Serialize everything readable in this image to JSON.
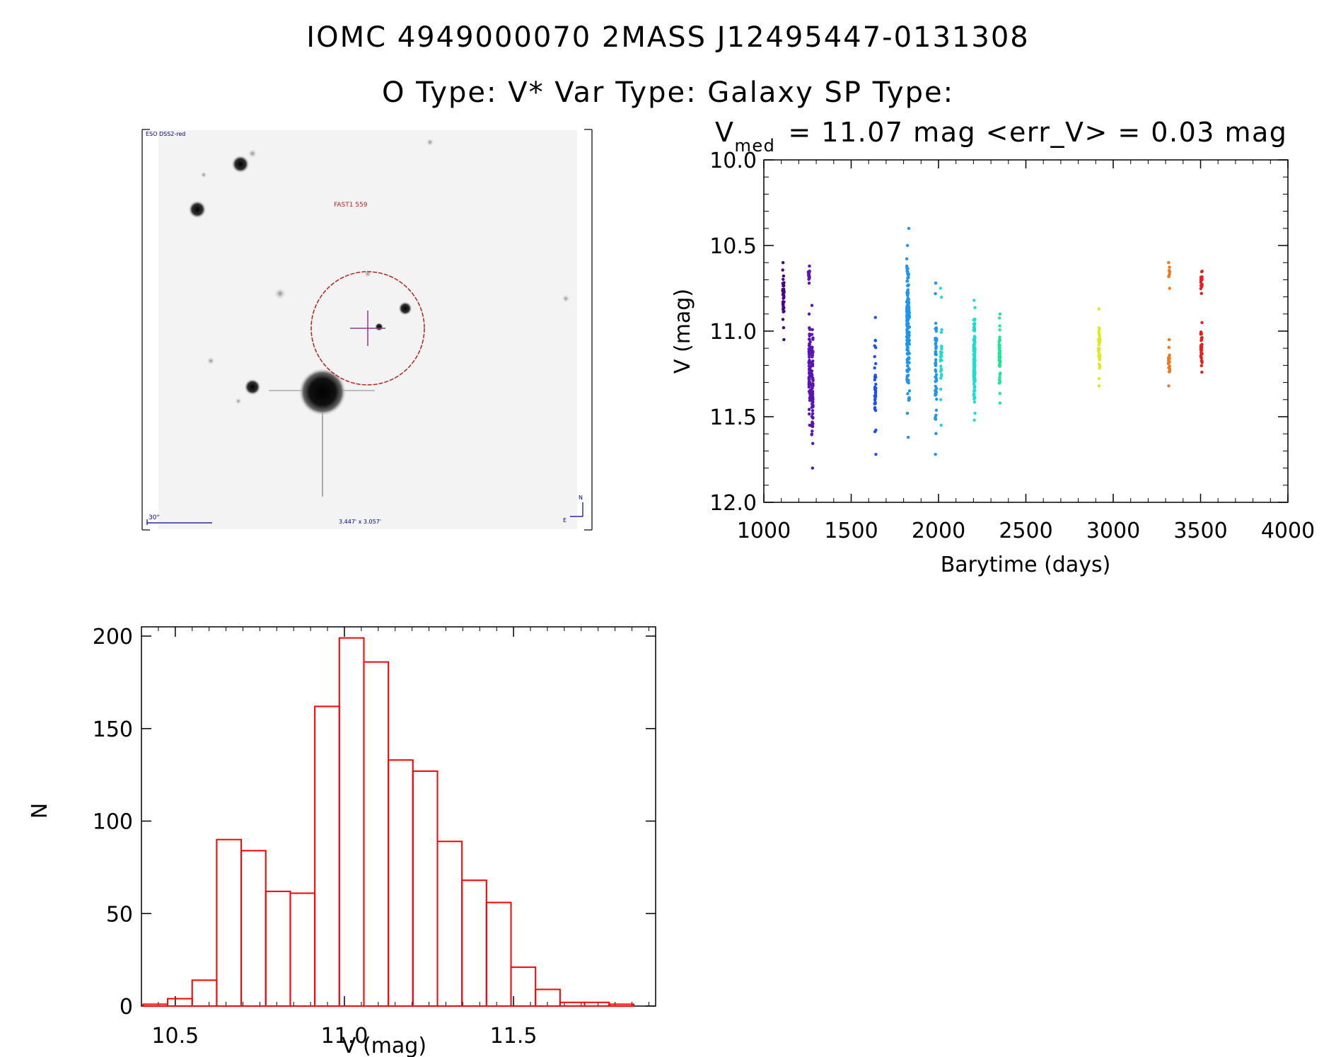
{
  "header": {
    "title_line1": "IOMC 4949000070    2MASS J12495447-0131308",
    "title_line2": "O Type: V*  Var Type: Galaxy  SP Type:"
  },
  "finder": {
    "survey_label": "ESO DSS2-red",
    "object_label": "FAST1 559",
    "scale_label": "30\"",
    "fov_label": "3.447' x 3.057'",
    "north_label": "N",
    "east_label": "E"
  },
  "lightcurve": {
    "vmed_prefix": "V",
    "vmed_subscript": "med",
    "vmed_text": "= 11.07 mag <err_V> = 0.03 mag",
    "colors": [
      "#4b0082",
      "#5a14b4",
      "#3c1ee6",
      "#1e50f0",
      "#1e96f0",
      "#1edcd2",
      "#1ee696",
      "#28e650",
      "#50dc1e",
      "#dceb1e",
      "#f0a01e",
      "#f0781e",
      "#e61e1e"
    ]
  },
  "chart_data": [
    {
      "type": "scatter",
      "xlabel": "Barytime (days)",
      "ylabel": "V (mag)",
      "xlim": [
        1000,
        4000
      ],
      "ylim": [
        12.0,
        10.0
      ],
      "y_inverted": true,
      "xticks": [
        1000,
        1500,
        2000,
        2500,
        3000,
        3500,
        4000
      ],
      "yticks": [
        10.0,
        10.5,
        11.0,
        11.5,
        12.0
      ],
      "xtick_labels": [
        "1000",
        "1500",
        "2000",
        "2500",
        "3000",
        "3500",
        "4000"
      ],
      "ytick_labels": [
        "10.0",
        "10.5",
        "11.0",
        "11.5",
        "12.0"
      ],
      "groups": [
        {
          "x": 1112,
          "y_range": [
            10.6,
            11.05
          ],
          "n": 40
        },
        {
          "x": 1258,
          "y_range": [
            10.62,
            10.72
          ],
          "n": 15
        },
        {
          "x": 1262,
          "y_range": [
            10.9,
            11.55
          ],
          "n": 80
        },
        {
          "x": 1278,
          "y_range": [
            10.85,
            11.8
          ],
          "n": 80
        },
        {
          "x": 1638,
          "y_range": [
            10.92,
            11.72
          ],
          "n": 35
        },
        {
          "x": 1822,
          "y_range": [
            10.5,
            11.48
          ],
          "n": 120
        },
        {
          "x": 1830,
          "y_range": [
            10.4,
            11.62
          ],
          "n": 60
        },
        {
          "x": 1985,
          "y_range": [
            10.72,
            11.72
          ],
          "n": 60
        },
        {
          "x": 2015,
          "y_range": [
            10.75,
            11.55
          ],
          "n": 30
        },
        {
          "x": 2205,
          "y_range": [
            10.82,
            11.52
          ],
          "n": 150
        },
        {
          "x": 2350,
          "y_range": [
            10.9,
            11.42
          ],
          "n": 50
        },
        {
          "x": 2920,
          "y_range": [
            10.87,
            11.32
          ],
          "n": 40
        },
        {
          "x": 3320,
          "y_range": [
            10.6,
            10.75
          ],
          "n": 10
        },
        {
          "x": 3320,
          "y_range": [
            11.05,
            11.32
          ],
          "n": 25
        },
        {
          "x": 3505,
          "y_range": [
            10.65,
            10.78
          ],
          "n": 20
        },
        {
          "x": 3505,
          "y_range": [
            10.95,
            11.24
          ],
          "n": 35
        }
      ]
    },
    {
      "type": "bar",
      "xlabel": "V (mag)",
      "ylabel": "N",
      "xlim": [
        10.4,
        11.92
      ],
      "ylim": [
        0,
        205
      ],
      "xticks": [
        10.5,
        11.0,
        11.5
      ],
      "yticks": [
        0,
        50,
        100,
        150,
        200
      ],
      "xtick_labels": [
        "10.5",
        "11.0",
        "11.5"
      ],
      "ytick_labels": [
        "0",
        "50",
        "100",
        "150",
        "200"
      ],
      "bin_width": 0.0725,
      "bin_edges_start": 10.405,
      "values": [
        1,
        4,
        14,
        90,
        84,
        62,
        61,
        162,
        199,
        186,
        133,
        127,
        89,
        68,
        56,
        21,
        9,
        2,
        2,
        1
      ]
    }
  ]
}
